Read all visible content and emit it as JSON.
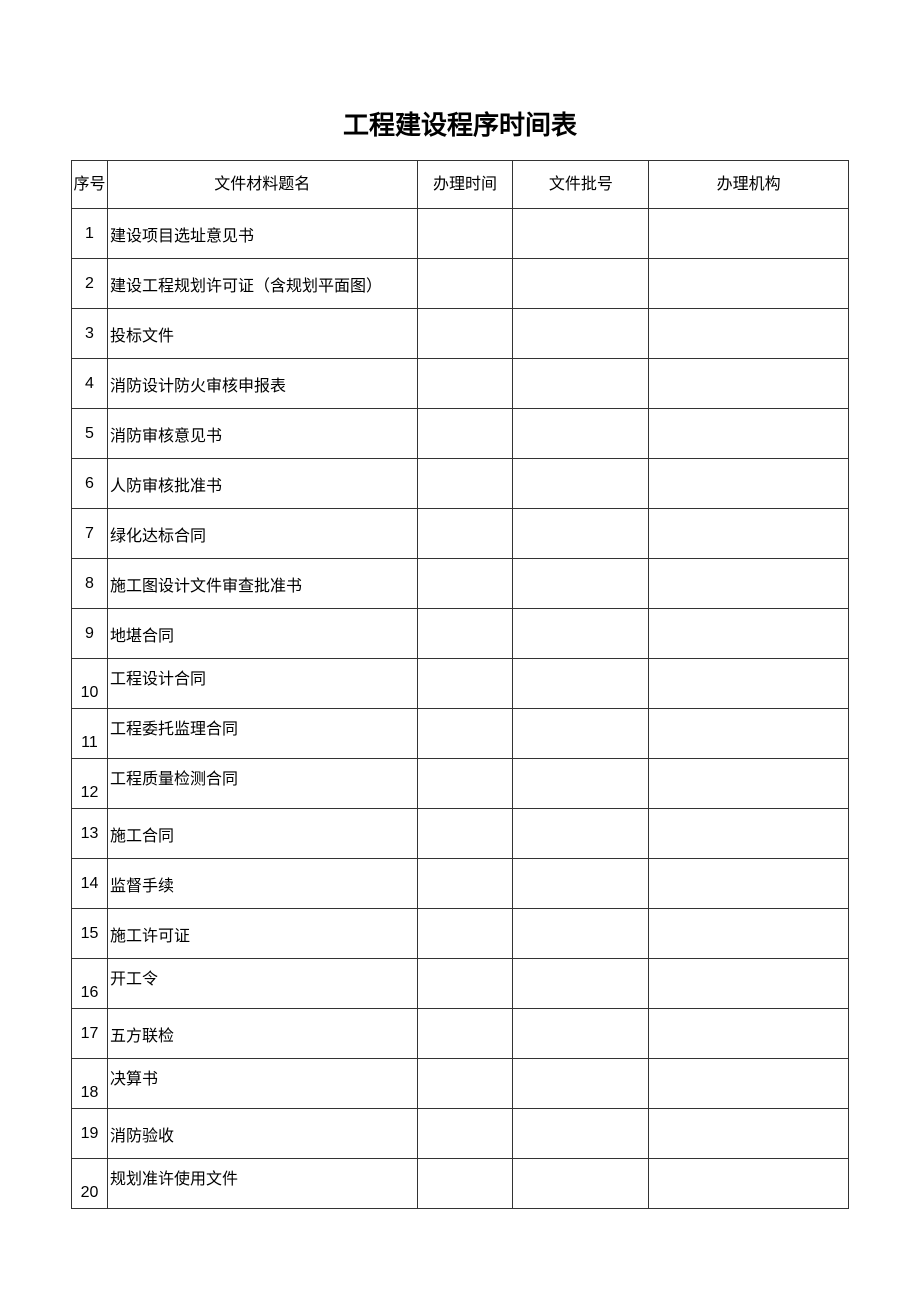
{
  "title": "工程建设程序时间表",
  "table": {
    "columns": [
      "序号",
      "文件材料题名",
      "办理时间",
      "文件批号",
      "办理机构"
    ],
    "rows": [
      {
        "seq": "1",
        "name": "建设项目选址意见书",
        "vAlign": "middle"
      },
      {
        "seq": "2",
        "name": "建设工程规划许可证（含规划平面图）",
        "vAlign": "middle"
      },
      {
        "seq": "3",
        "name": "投标文件",
        "vAlign": "middle"
      },
      {
        "seq": "4",
        "name": "消防设计防火审核申报表",
        "vAlign": "middle"
      },
      {
        "seq": "5",
        "name": "消防审核意见书",
        "vAlign": "middle"
      },
      {
        "seq": "6",
        "name": "人防审核批准书",
        "vAlign": "middle"
      },
      {
        "seq": "7",
        "name": "绿化达标合同",
        "vAlign": "middle"
      },
      {
        "seq": "8",
        "name": "施工图设计文件审查批准书",
        "vAlign": "middle"
      },
      {
        "seq": "9",
        "name": "地堪合同",
        "vAlign": "middle"
      },
      {
        "seq": "10",
        "name": "工程设计合同",
        "vAlign": "offset"
      },
      {
        "seq": "11",
        "name": "工程委托监理合同",
        "vAlign": "offset"
      },
      {
        "seq": "12",
        "name": "工程质量检测合同",
        "vAlign": "offset"
      },
      {
        "seq": "13",
        "name": "施工合同",
        "vAlign": "middle"
      },
      {
        "seq": "14",
        "name": "监督手续",
        "vAlign": "middle"
      },
      {
        "seq": "15",
        "name": "施工许可证",
        "vAlign": "middle"
      },
      {
        "seq": "16",
        "name": "开工令",
        "vAlign": "offset"
      },
      {
        "seq": "17",
        "name": "五方联检",
        "vAlign": "middle"
      },
      {
        "seq": "18",
        "name": "决算书",
        "vAlign": "offset"
      },
      {
        "seq": "19",
        "name": "消防验收",
        "vAlign": "middle"
      },
      {
        "seq": "20",
        "name": "规划准许使用文件",
        "vAlign": "offset"
      }
    ]
  }
}
